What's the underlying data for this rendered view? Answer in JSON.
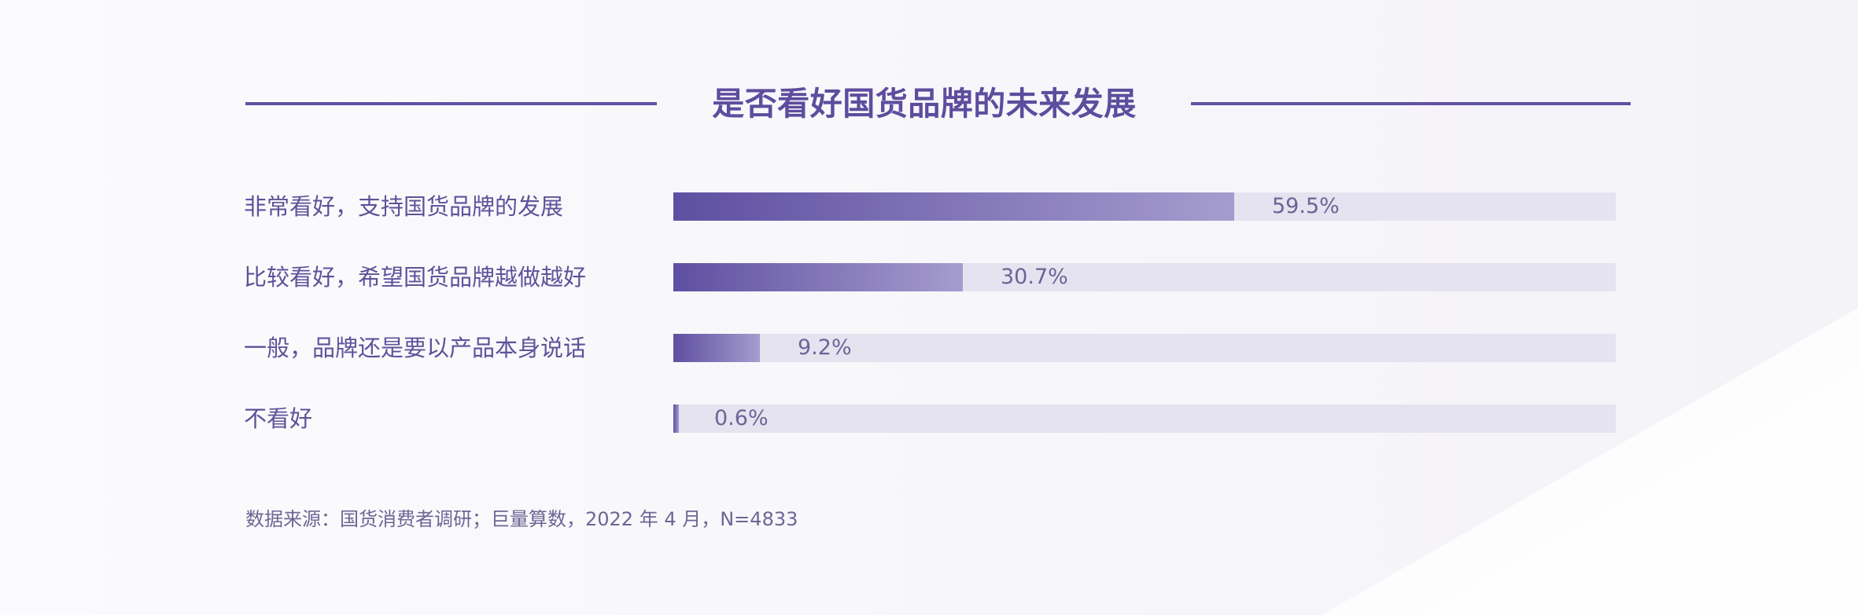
{
  "page": {
    "source_note": "数据来源：国货消费者调研；巨量算数，2022 年 4 月，N=4833"
  },
  "chart_data": {
    "type": "bar",
    "orientation": "horizontal",
    "title": "是否看好国货品牌的未来发展",
    "categories": [
      "非常看好，支持国货品牌的发展",
      "比较看好，希望国货品牌越做越好",
      "一般，品牌还是要以产品本身说话",
      "不看好"
    ],
    "values": [
      59.5,
      30.7,
      9.2,
      0.6
    ],
    "value_labels": [
      "59.5%",
      "30.7%",
      "9.2%",
      "0.6%"
    ],
    "xlim": [
      0,
      100
    ],
    "grid": false,
    "colors": {
      "title": "#5d4d9e",
      "bar_start": "#5e4fa1",
      "bar_end": "#a59cce",
      "track": "#e6e3f0",
      "label": "#5f529a"
    }
  }
}
